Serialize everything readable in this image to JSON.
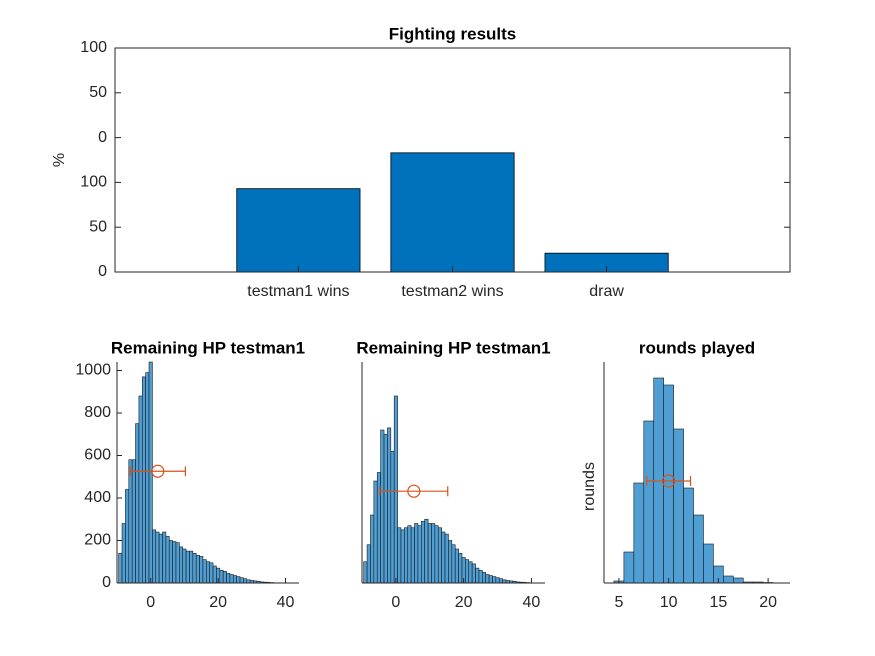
{
  "chart_data": [
    {
      "type": "bar",
      "title": "Fighting results",
      "ylabel": "%",
      "categories": [
        "testman1 wins",
        "testman2 wins",
        "draw"
      ],
      "values": [
        93,
        133,
        21
      ],
      "color": "#0072bd",
      "ylim": [
        0,
        250
      ],
      "yticks": [
        0,
        50,
        100,
        {
          "value": 150,
          "label": "0"
        },
        {
          "value": 200,
          "label": "50"
        },
        {
          "value": 250,
          "label": "100"
        }
      ],
      "box": true
    },
    {
      "type": "histogram",
      "title": "Remaining HP testman1",
      "color": "#4f9fd5",
      "bins": [
        -9.5,
        -8.5,
        -7.5,
        -6.5,
        -5.5,
        -4.5,
        -3.5,
        -2.5,
        -1.5,
        -0.5,
        0.5,
        1.5,
        2.5,
        3.5,
        4.5,
        5.5,
        6.5,
        7.5,
        8.5,
        9.5,
        10.5,
        11.5,
        12.5,
        13.5,
        14.5,
        15.5,
        16.5,
        17.5,
        18.5,
        19.5,
        20.5,
        21.5,
        22.5,
        23.5,
        24.5,
        25.5,
        26.5,
        27.5,
        28.5,
        29.5,
        30.5,
        31.5,
        32.5,
        33.5,
        34.5,
        35.5,
        36.5,
        37.5,
        38.5,
        39.5
      ],
      "values": [
        140,
        280,
        440,
        580,
        580,
        750,
        880,
        970,
        990,
        1040,
        250,
        240,
        230,
        240,
        220,
        200,
        195,
        190,
        170,
        160,
        150,
        150,
        140,
        130,
        125,
        110,
        100,
        95,
        80,
        70,
        60,
        55,
        45,
        40,
        35,
        30,
        25,
        20,
        15,
        12,
        10,
        8,
        5,
        4,
        3,
        2,
        1,
        1,
        1
      ],
      "xlim": [
        -10,
        44
      ],
      "xticks": [
        0,
        20,
        40
      ],
      "ylim": [
        0,
        1040
      ],
      "yticks": [
        0,
        200,
        400,
        600,
        800,
        1000
      ],
      "errorbar": {
        "x": 2.1,
        "y": 526,
        "xerr": 8.2,
        "color": "#d95319"
      }
    },
    {
      "type": "histogram",
      "title": "Remaining HP testman1",
      "color": "#4f9fd5",
      "bins": [
        -9.5,
        -8.5,
        -7.5,
        -6.5,
        -5.5,
        -4.5,
        -3.5,
        -2.5,
        -1.5,
        -0.5,
        0.5,
        1.5,
        2.5,
        3.5,
        4.5,
        5.5,
        6.5,
        7.5,
        8.5,
        9.5,
        10.5,
        11.5,
        12.5,
        13.5,
        14.5,
        15.5,
        16.5,
        17.5,
        18.5,
        19.5,
        20.5,
        21.5,
        22.5,
        23.5,
        24.5,
        25.5,
        26.5,
        27.5,
        28.5,
        29.5,
        30.5,
        31.5,
        32.5,
        33.5,
        34.5,
        35.5,
        36.5,
        37.5,
        38.5,
        39.5
      ],
      "values": [
        100,
        180,
        320,
        480,
        520,
        720,
        700,
        730,
        620,
        880,
        260,
        250,
        260,
        270,
        260,
        280,
        270,
        290,
        300,
        280,
        280,
        270,
        260,
        240,
        230,
        200,
        180,
        160,
        140,
        120,
        110,
        100,
        90,
        70,
        60,
        50,
        40,
        35,
        30,
        25,
        20,
        15,
        12,
        10,
        8,
        5,
        4,
        3,
        2
      ],
      "xlim": [
        -10,
        44
      ],
      "xticks": [
        0,
        20,
        40
      ],
      "ylim": [
        0,
        1040
      ],
      "errorbar": {
        "x": 5.3,
        "y": 432,
        "xerr": 10,
        "color": "#d95319"
      }
    },
    {
      "type": "histogram",
      "title": "rounds played",
      "ylabel": "rounds",
      "color": "#4f9fd5",
      "bins": [
        4.5,
        5.5,
        6.5,
        7.5,
        8.5,
        9.5,
        10.5,
        11.5,
        12.5,
        13.5,
        14.5,
        15.5,
        16.5,
        17.5,
        18.5,
        19.5,
        20.5
      ],
      "values": [
        2,
        31,
        100,
        162,
        205,
        198,
        154,
        95,
        68,
        39,
        17,
        7,
        5,
        1,
        1,
        0.5
      ],
      "xlim": [
        3.5,
        22.2
      ],
      "xticks": [
        5,
        10,
        15,
        20
      ],
      "ylim": [
        0,
        221
      ],
      "errorbar": {
        "x": 10,
        "y": 102,
        "xerr": 2.2,
        "color": "#d95319"
      }
    }
  ]
}
